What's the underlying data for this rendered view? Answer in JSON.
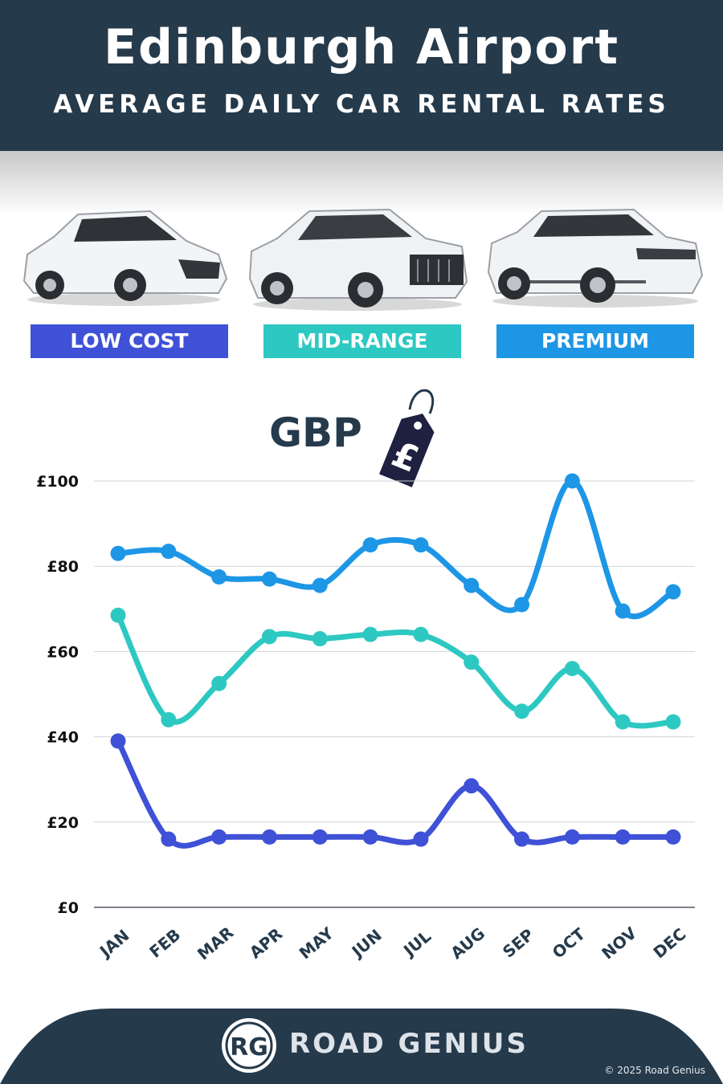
{
  "header": {
    "title": "Edinburgh Airport",
    "subtitle": "AVERAGE DAILY CAR RENTAL RATES"
  },
  "categories": [
    {
      "label": "LOW COST",
      "color": "#3f51d6"
    },
    {
      "label": "MID-RANGE",
      "color": "#2ec8c2"
    },
    {
      "label": "PREMIUM",
      "color": "#1e96e6"
    }
  ],
  "currency": {
    "label": "GBP",
    "symbol": "£"
  },
  "chart_data": {
    "type": "line",
    "categories": [
      "JAN",
      "FEB",
      "MAR",
      "APR",
      "MAY",
      "JUN",
      "JUL",
      "AUG",
      "SEP",
      "OCT",
      "NOV",
      "DEC"
    ],
    "y_ticks": [
      "£0",
      "£20",
      "£40",
      "£60",
      "£80",
      "£100"
    ],
    "ylim": [
      0,
      100
    ],
    "grid": true,
    "series": [
      {
        "name": "LOW COST",
        "color": "#3f51d6",
        "values": [
          39,
          16,
          16.5,
          16.5,
          16.5,
          16.5,
          16,
          28.5,
          16,
          16.5,
          16.5,
          16.5
        ]
      },
      {
        "name": "MID-RANGE",
        "color": "#2ec8c2",
        "values": [
          68.5,
          44,
          52.5,
          63.5,
          63,
          64,
          64,
          57.5,
          46,
          56,
          43.5,
          43.5
        ]
      },
      {
        "name": "PREMIUM",
        "color": "#1e96e6",
        "values": [
          83,
          83.5,
          77.5,
          77,
          75.5,
          85,
          85,
          75.5,
          71,
          100,
          69.5,
          74
        ]
      }
    ]
  },
  "footer": {
    "logo_initials": "RG",
    "brand": "ROAD GENIUS",
    "copyright": "© 2025 Road Genius"
  }
}
